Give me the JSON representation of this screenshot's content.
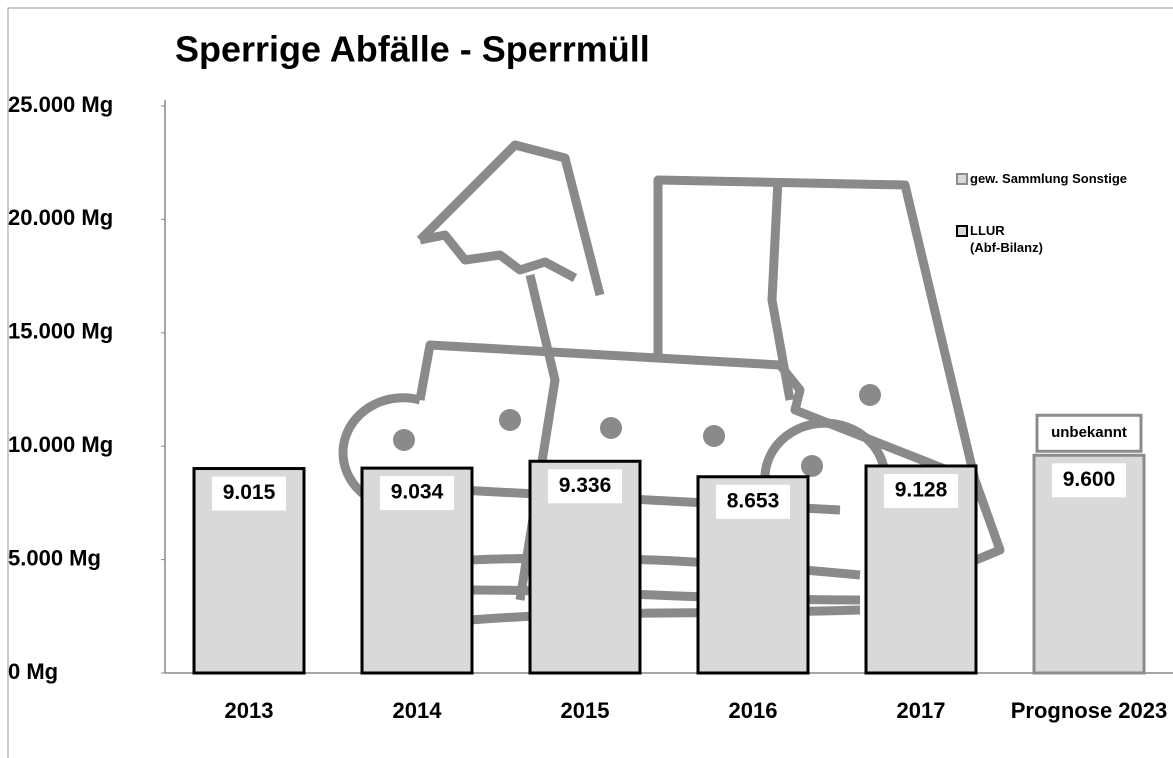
{
  "chart_data": {
    "type": "bar",
    "title": "Sperrige Abfälle - Sperrmüll",
    "categories": [
      "2013",
      "2014",
      "2015",
      "2016",
      "2017",
      "Prognose 2023"
    ],
    "series": [
      {
        "name": "gew. Sammlung Sonstige",
        "color": "#8c8c8c",
        "values": [
          null,
          null,
          null,
          null,
          null,
          9600
        ],
        "value_labels": [
          null,
          null,
          null,
          null,
          null,
          "9.600"
        ]
      },
      {
        "name": "LLUR\n(Abf-Bilanz)",
        "color": "#000000",
        "values": [
          9015,
          9034,
          9336,
          8653,
          9128,
          null
        ],
        "value_labels": [
          "9.015",
          "9.034",
          "9.336",
          "8.653",
          "9.128",
          null
        ]
      }
    ],
    "annotation": "unbekannt",
    "ylim": [
      0,
      25000
    ],
    "yticks": [
      {
        "value": 0,
        "label": "0 Mg"
      },
      {
        "value": 5000,
        "label": "5.000 Mg"
      },
      {
        "value": 10000,
        "label": "10.000 Mg"
      },
      {
        "value": 15000,
        "label": "15.000 Mg"
      },
      {
        "value": 20000,
        "label": "20.000 Mg"
      },
      {
        "value": 25000,
        "label": "25.000 Mg"
      }
    ],
    "bar_fill": "#d9d9d9"
  }
}
